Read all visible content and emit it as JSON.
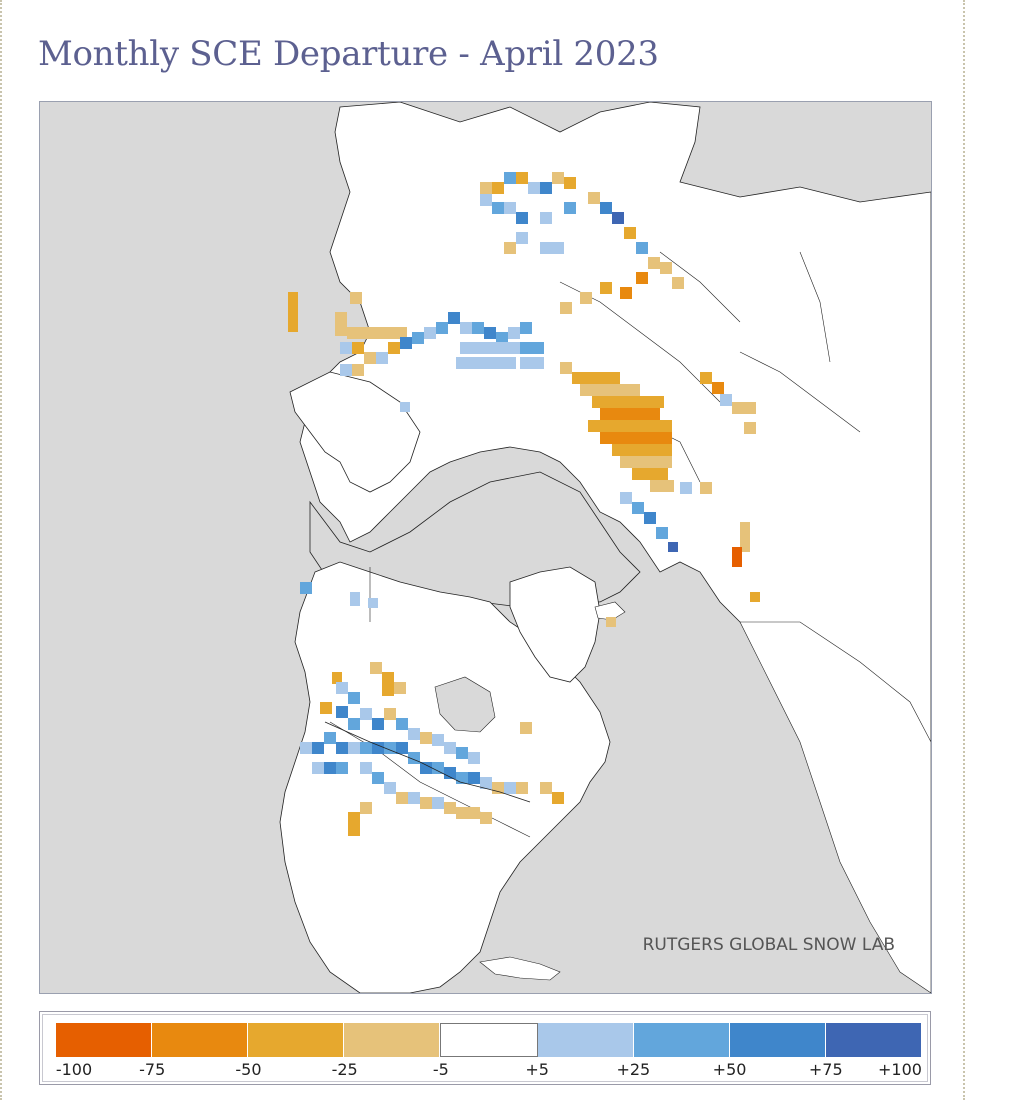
{
  "title": "Monthly SCE Departure - April 2023",
  "map": {
    "watermark": "RUTGERS GLOBAL SNOW LAB",
    "colors": {
      "ocean": "#d9d9d9",
      "land": "#ffffff",
      "border": "#222222"
    }
  },
  "legend": {
    "swatches": [
      {
        "color": "#e65f00"
      },
      {
        "color": "#e8890f"
      },
      {
        "color": "#e6a82e"
      },
      {
        "color": "#e6c27a"
      },
      {
        "color": "#ffffff"
      },
      {
        "color": "#a9c8ea"
      },
      {
        "color": "#62a6dc"
      },
      {
        "color": "#3f86cb"
      },
      {
        "color": "#3e66b3"
      }
    ],
    "labels": [
      "-100",
      "-75",
      "-50",
      "-25",
      "-5",
      "+5",
      "+25",
      "+50",
      "+75",
      "+100"
    ]
  }
}
